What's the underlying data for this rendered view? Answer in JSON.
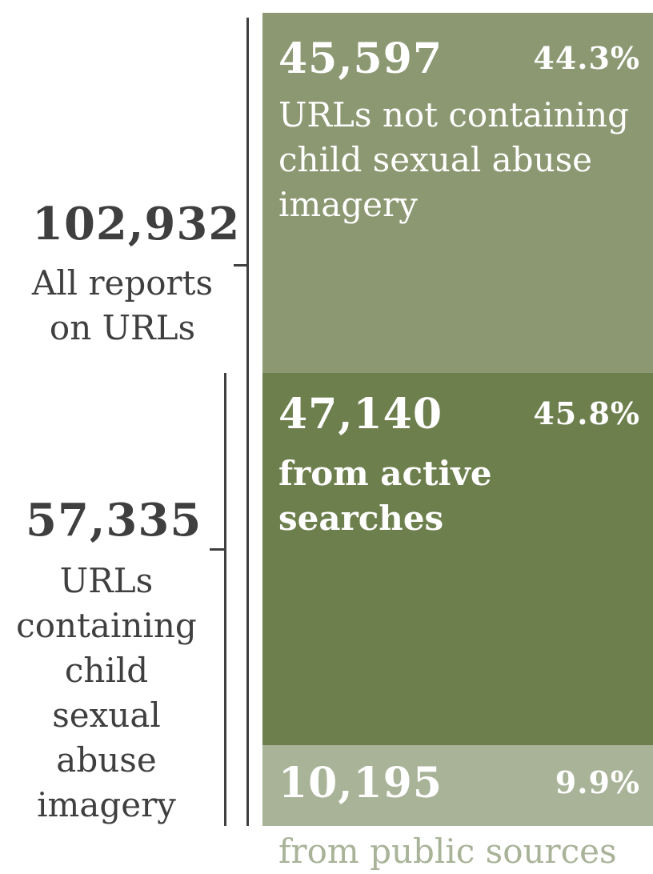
{
  "chart_data": {
    "type": "bar",
    "stacked": true,
    "total": {
      "value": "102,932",
      "label": "All reports on URLs"
    },
    "subtotal": {
      "value": "57,335",
      "label": "URLs containing child sexual abuse imagery"
    },
    "segments": [
      {
        "value_text": "45,597",
        "value": 45597,
        "percent_text": "44.3%",
        "percent": 44.3,
        "label": "URLs not containing child sexual abuse imagery",
        "color": "#8c9872"
      },
      {
        "value_text": "47,140",
        "value": 47140,
        "percent_text": "45.8%",
        "percent": 45.8,
        "label": "from active searches",
        "color": "#6e7f4e"
      },
      {
        "value_text": "10,195",
        "value": 10195,
        "percent_text": "9.9%",
        "percent": 9.9,
        "label": "from public sources",
        "color": "#a8b398"
      }
    ]
  }
}
